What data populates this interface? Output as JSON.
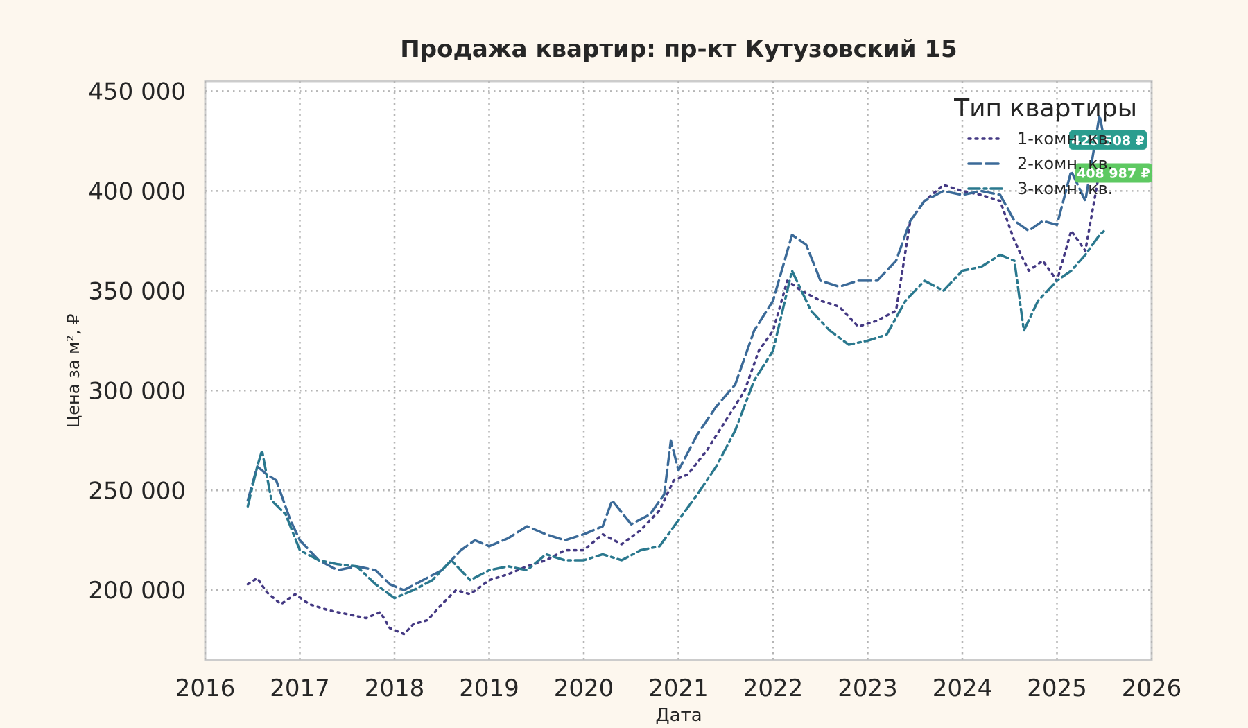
{
  "chart_data": {
    "type": "line",
    "title": "Продажа квартир: пр-кт Кутузовский 15",
    "xlabel": "Дата",
    "ylabel": "Цена за м², ₽",
    "xlim": [
      2016.0,
      2026.0
    ],
    "ylim": [
      165000,
      455000
    ],
    "x_ticks": [
      "2016",
      "2017",
      "2018",
      "2019",
      "2020",
      "2021",
      "2022",
      "2023",
      "2024",
      "2025",
      "2026"
    ],
    "y_ticks": [
      {
        "value": 200000,
        "label": "200 000"
      },
      {
        "value": 250000,
        "label": "250 000"
      },
      {
        "value": 300000,
        "label": "300 000"
      },
      {
        "value": 350000,
        "label": "350 000"
      },
      {
        "value": 400000,
        "label": "400 000"
      },
      {
        "value": 450000,
        "label": "450 000"
      }
    ],
    "grid": true,
    "legend": {
      "title": "Тип квартиры",
      "placement": "top-right"
    },
    "series": [
      {
        "name": "1-комн. кв.",
        "color": "#443983",
        "dash": "dotted",
        "x": [
          2016.45,
          2016.55,
          2016.65,
          2016.8,
          2016.95,
          2017.1,
          2017.3,
          2017.5,
          2017.7,
          2017.85,
          2017.95,
          2018.1,
          2018.2,
          2018.35,
          2018.5,
          2018.65,
          2018.8,
          2019.0,
          2019.2,
          2019.4,
          2019.6,
          2019.8,
          2020.0,
          2020.2,
          2020.4,
          2020.6,
          2020.8,
          2020.95,
          2021.1,
          2021.3,
          2021.5,
          2021.7,
          2021.85,
          2022.0,
          2022.15,
          2022.3,
          2022.5,
          2022.7,
          2022.9,
          2023.1,
          2023.3,
          2023.45,
          2023.6,
          2023.8,
          2024.0,
          2024.2,
          2024.4,
          2024.55,
          2024.7,
          2024.85,
          2025.0,
          2025.15,
          2025.3,
          2025.45,
          2025.5
        ],
        "y": [
          203000,
          206000,
          199000,
          193000,
          198000,
          193000,
          190000,
          188000,
          186000,
          189000,
          181000,
          178000,
          183000,
          185000,
          193000,
          200000,
          198000,
          205000,
          208000,
          212000,
          215000,
          220000,
          220000,
          228000,
          223000,
          230000,
          240000,
          255000,
          258000,
          270000,
          285000,
          300000,
          320000,
          330000,
          355000,
          350000,
          345000,
          342000,
          332000,
          335000,
          340000,
          385000,
          395000,
          403000,
          400000,
          398000,
          395000,
          375000,
          360000,
          365000,
          355000,
          380000,
          370000,
          410000,
          408987
        ]
      },
      {
        "name": "2-комн. кв.",
        "color": "#3b6a98",
        "dash": "dashed",
        "x": [
          2016.45,
          2016.55,
          2016.65,
          2016.75,
          2016.9,
          2017.0,
          2017.2,
          2017.4,
          2017.6,
          2017.8,
          2017.95,
          2018.1,
          2018.3,
          2018.5,
          2018.7,
          2018.85,
          2019.0,
          2019.2,
          2019.4,
          2019.6,
          2019.8,
          2020.0,
          2020.2,
          2020.3,
          2020.5,
          2020.7,
          2020.85,
          2020.92,
          2021.0,
          2021.2,
          2021.4,
          2021.6,
          2021.8,
          2022.0,
          2022.2,
          2022.35,
          2022.5,
          2022.7,
          2022.9,
          2023.1,
          2023.3,
          2023.45,
          2023.6,
          2023.8,
          2024.0,
          2024.2,
          2024.4,
          2024.55,
          2024.7,
          2024.85,
          2025.0,
          2025.15,
          2025.3,
          2025.45,
          2025.5
        ],
        "y": [
          245000,
          262000,
          258000,
          255000,
          235000,
          225000,
          215000,
          210000,
          212000,
          210000,
          203000,
          200000,
          205000,
          210000,
          220000,
          225000,
          222000,
          226000,
          232000,
          228000,
          225000,
          228000,
          232000,
          245000,
          233000,
          238000,
          248000,
          275000,
          260000,
          278000,
          292000,
          303000,
          330000,
          345000,
          378000,
          373000,
          355000,
          352000,
          355000,
          355000,
          365000,
          385000,
          395000,
          400000,
          398000,
          400000,
          398000,
          385000,
          380000,
          385000,
          383000,
          410000,
          395000,
          438000,
          425508
        ]
      },
      {
        "name": "3-комн. кв.",
        "color": "#2a788e",
        "dash": "dashdot",
        "x": [
          2016.45,
          2016.55,
          2016.6,
          2016.7,
          2016.85,
          2017.0,
          2017.2,
          2017.4,
          2017.6,
          2017.8,
          2018.0,
          2018.2,
          2018.4,
          2018.6,
          2018.8,
          2019.0,
          2019.2,
          2019.4,
          2019.6,
          2019.8,
          2020.0,
          2020.2,
          2020.4,
          2020.6,
          2020.8,
          2021.0,
          2021.2,
          2021.4,
          2021.6,
          2021.8,
          2022.0,
          2022.2,
          2022.4,
          2022.6,
          2022.8,
          2023.0,
          2023.2,
          2023.4,
          2023.6,
          2023.8,
          2024.0,
          2024.2,
          2024.4,
          2024.55,
          2024.65,
          2024.8,
          2025.0,
          2025.15,
          2025.3,
          2025.45,
          2025.5
        ],
        "y": [
          242000,
          262000,
          270000,
          245000,
          238000,
          220000,
          215000,
          213000,
          212000,
          203000,
          196000,
          200000,
          205000,
          215000,
          205000,
          210000,
          212000,
          210000,
          218000,
          215000,
          215000,
          218000,
          215000,
          220000,
          222000,
          235000,
          248000,
          262000,
          280000,
          305000,
          320000,
          360000,
          340000,
          330000,
          323000,
          325000,
          328000,
          345000,
          355000,
          350000,
          360000,
          362000,
          368000,
          365000,
          330000,
          345000,
          355000,
          360000,
          368000,
          378000,
          380000
        ]
      }
    ],
    "value_badges": [
      {
        "label": "425 508 ₽",
        "value": 425508,
        "color": "#2a9d8f"
      },
      {
        "label": "408 987 ₽",
        "value": 408987,
        "color": "#5ec962"
      }
    ]
  }
}
